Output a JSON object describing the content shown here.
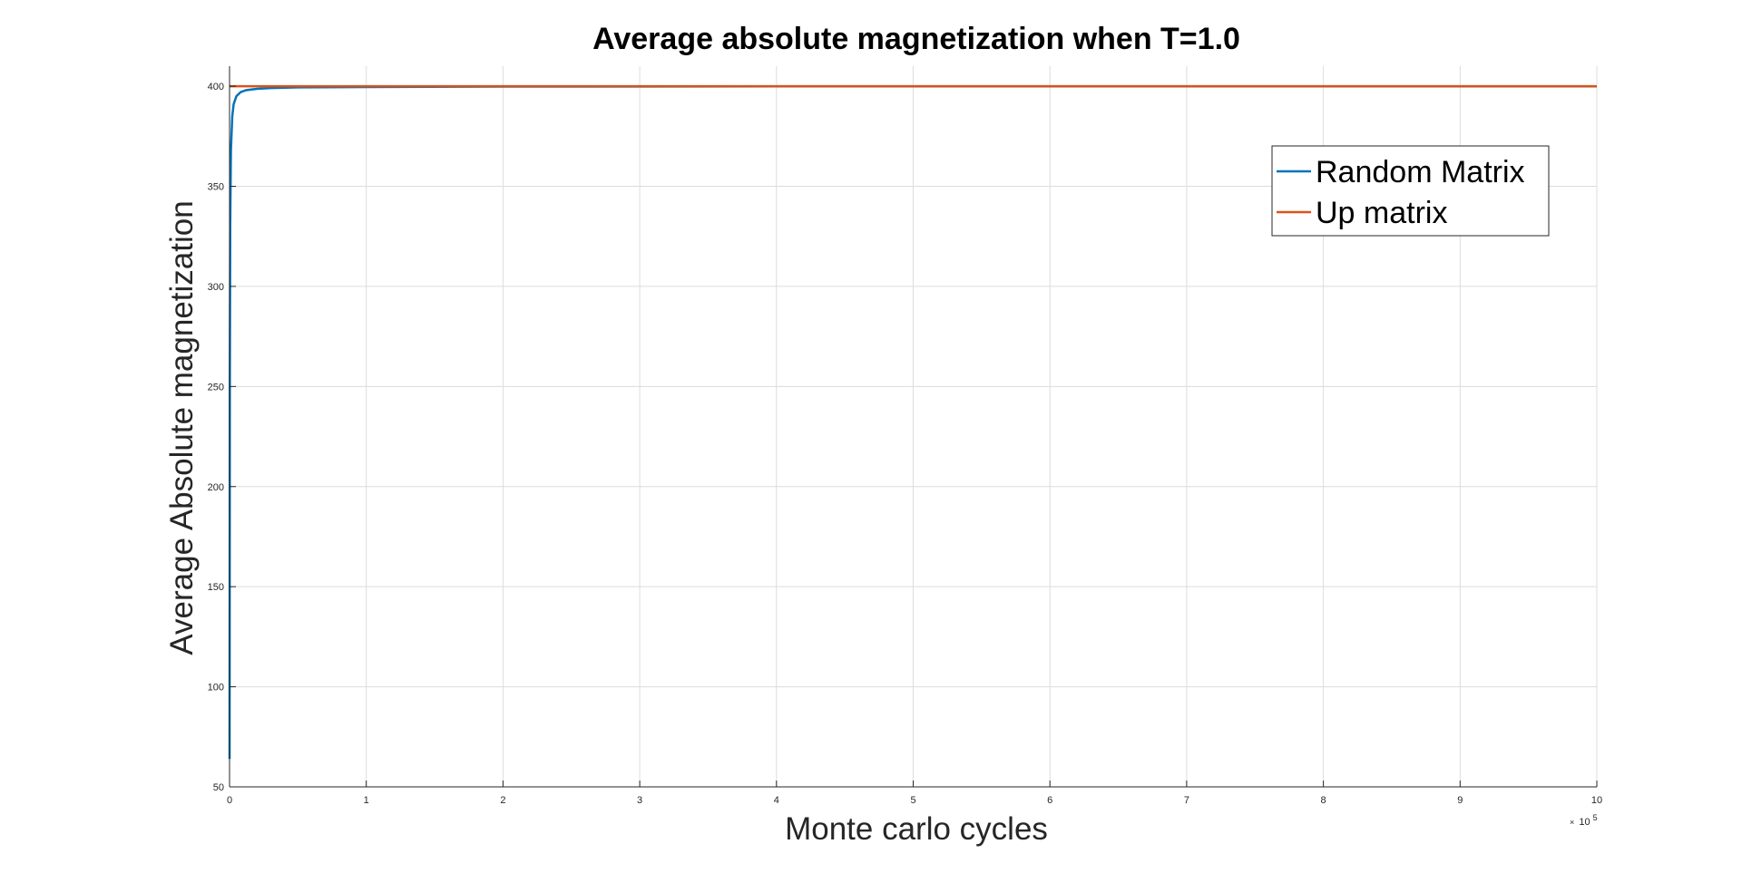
{
  "chart_data": {
    "type": "line",
    "title": "Average absolute magnetization when T=1.0",
    "xlabel": "Monte carlo cycles",
    "ylabel": "Average Absolute magnetization",
    "x_exponent_base": "10",
    "x_exponent_power": "5",
    "x_exponent_times": "×",
    "xlim": [
      0,
      10
    ],
    "ylim": [
      50,
      410
    ],
    "x_ticks": [
      0,
      1,
      2,
      3,
      4,
      5,
      6,
      7,
      8,
      9,
      10
    ],
    "x_tick_labels": [
      "0",
      "1",
      "2",
      "3",
      "4",
      "5",
      "6",
      "7",
      "8",
      "9",
      "10"
    ],
    "y_ticks": [
      50,
      100,
      150,
      200,
      250,
      300,
      350,
      400
    ],
    "y_tick_labels": [
      "50",
      "100",
      "150",
      "200",
      "250",
      "300",
      "350",
      "400"
    ],
    "grid": true,
    "legend_position": "top-right",
    "series": [
      {
        "name": "Random Matrix",
        "color": "#0072BD",
        "x": [
          0,
          0.002,
          0.005,
          0.01,
          0.02,
          0.03,
          0.05,
          0.08,
          0.12,
          0.2,
          0.3,
          0.5,
          1,
          2,
          4,
          6,
          8,
          10
        ],
        "y": [
          64,
          250,
          330,
          368,
          385,
          391,
          395,
          397,
          398,
          398.7,
          399.1,
          399.4,
          399.6,
          399.8,
          399.9,
          399.9,
          399.9,
          399.9
        ]
      },
      {
        "name": "Up matrix",
        "color": "#D95319",
        "x": [
          0,
          1,
          2,
          3,
          4,
          5,
          6,
          7,
          8,
          9,
          10
        ],
        "y": [
          400,
          400,
          400,
          400,
          400,
          400,
          400,
          400,
          400,
          400,
          400
        ]
      }
    ]
  }
}
